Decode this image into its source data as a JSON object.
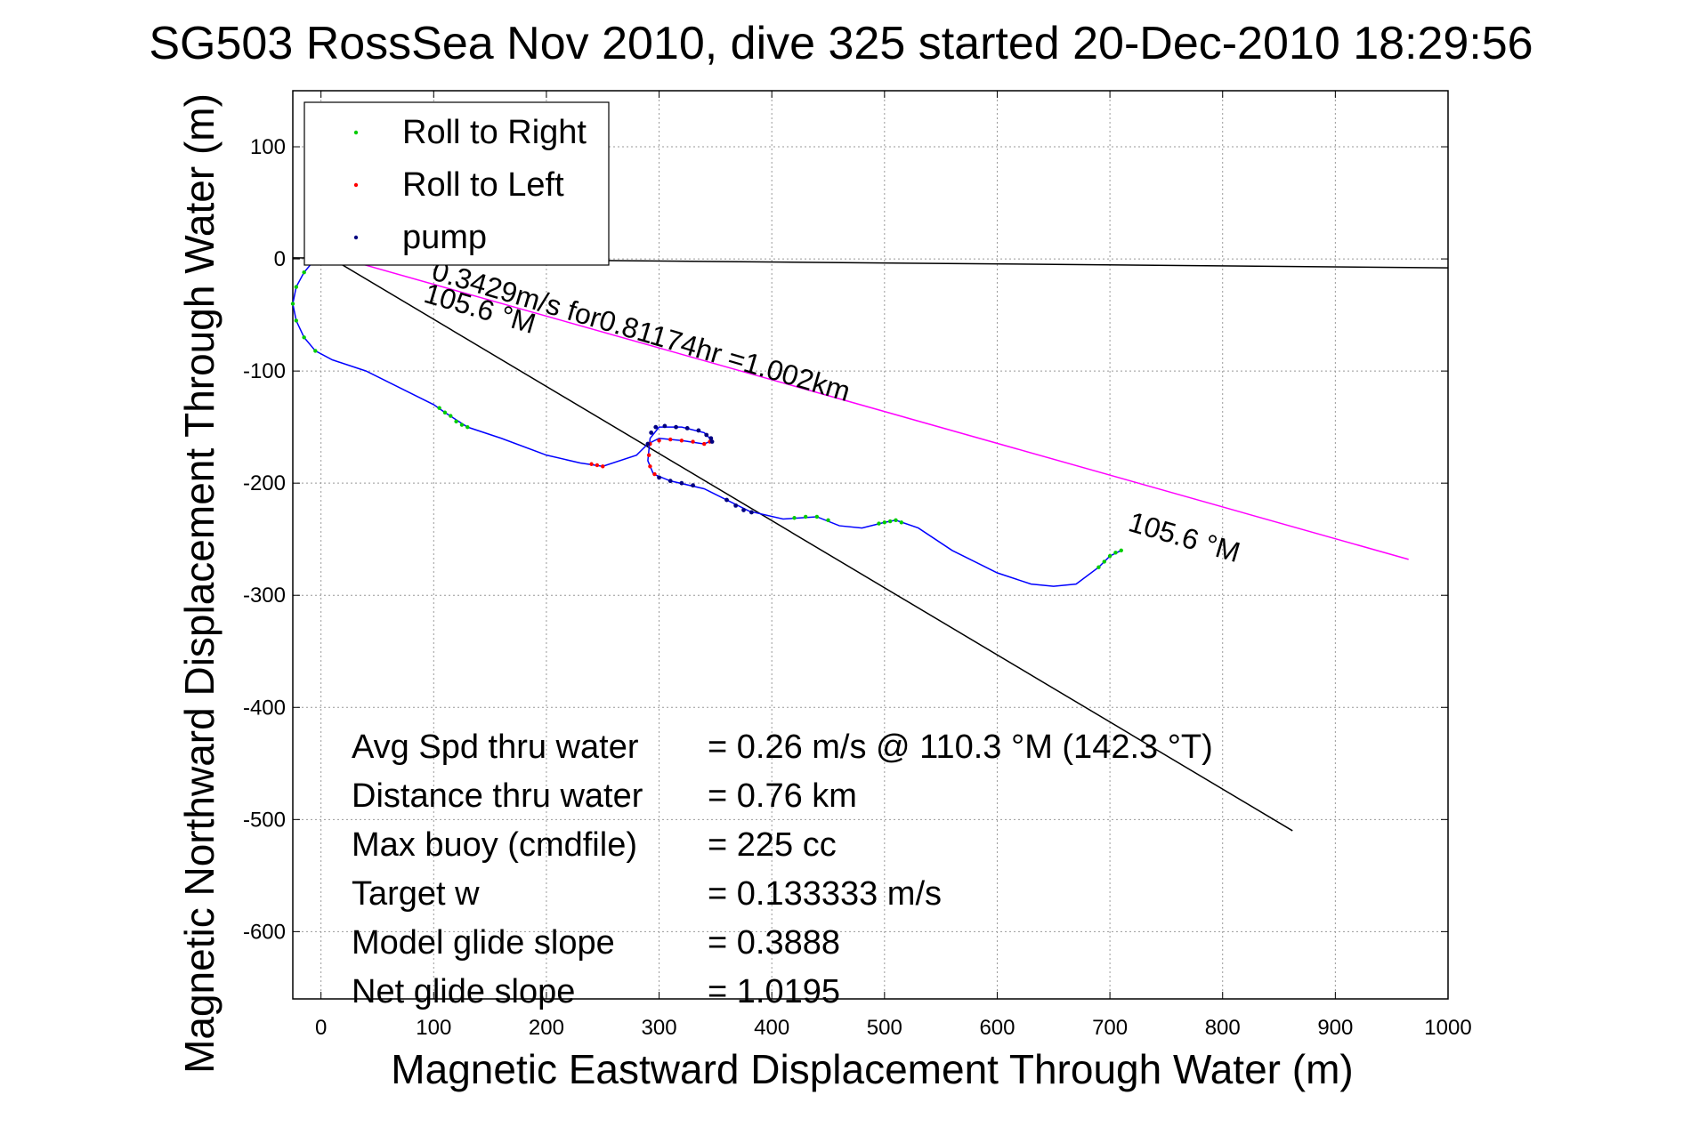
{
  "chart_data": {
    "type": "scatter",
    "title": "SG503 RossSea Nov 2010, dive 325 started 20-Dec-2010 18:29:56",
    "xlabel": "Magnetic Eastward Displacement Through Water (m)",
    "ylabel": "Magnetic Northward Displacement Through Water (m)",
    "xlim": [
      -25,
      1000
    ],
    "ylim": [
      -660,
      150
    ],
    "x_ticks": [
      0,
      100,
      200,
      300,
      400,
      500,
      600,
      700,
      800,
      900,
      1000
    ],
    "y_ticks": [
      100,
      0,
      -100,
      -200,
      -300,
      -400,
      -500,
      -600
    ],
    "grid": true,
    "legend_position": "top-left",
    "legend": [
      {
        "label": "Roll to Right",
        "color": "#00cc00"
      },
      {
        "label": "Roll to Left",
        "color": "#ff0000"
      },
      {
        "label": "pump",
        "color": "#000080"
      }
    ],
    "colors": {
      "track": "#0000ff",
      "roll_right": "#00cc00",
      "roll_left": "#ff0000",
      "pump": "#000080",
      "current_line": "#ff00ff",
      "heading_line": "#000000",
      "depth_avg_line": "#000000"
    },
    "track": [
      [
        -5,
        0
      ],
      [
        -15,
        -12
      ],
      [
        -22,
        -25
      ],
      [
        -25,
        -40
      ],
      [
        -22,
        -55
      ],
      [
        -15,
        -70
      ],
      [
        -5,
        -82
      ],
      [
        10,
        -90
      ],
      [
        40,
        -100
      ],
      [
        80,
        -120
      ],
      [
        100,
        -130
      ],
      [
        110,
        -137
      ],
      [
        130,
        -150
      ],
      [
        160,
        -160
      ],
      [
        200,
        -175
      ],
      [
        230,
        -182
      ],
      [
        250,
        -185
      ],
      [
        280,
        -175
      ],
      [
        290,
        -165
      ],
      [
        300,
        -160
      ],
      [
        320,
        -162
      ],
      [
        340,
        -165
      ],
      [
        347,
        -162
      ],
      [
        340,
        -155
      ],
      [
        320,
        -150
      ],
      [
        300,
        -150
      ],
      [
        292,
        -160
      ],
      [
        290,
        -180
      ],
      [
        295,
        -192
      ],
      [
        310,
        -198
      ],
      [
        340,
        -205
      ],
      [
        360,
        -215
      ],
      [
        380,
        -225
      ],
      [
        410,
        -232
      ],
      [
        440,
        -230
      ],
      [
        460,
        -238
      ],
      [
        480,
        -240
      ],
      [
        500,
        -235
      ],
      [
        510,
        -233
      ],
      [
        530,
        -240
      ],
      [
        560,
        -260
      ],
      [
        600,
        -280
      ],
      [
        630,
        -290
      ],
      [
        650,
        -292
      ],
      [
        670,
        -290
      ],
      [
        690,
        -275
      ],
      [
        700,
        -265
      ],
      [
        710,
        -260
      ]
    ],
    "roll_right": [
      [
        -5,
        0
      ],
      [
        -15,
        -12
      ],
      [
        -22,
        -25
      ],
      [
        -25,
        -40
      ],
      [
        -22,
        -55
      ],
      [
        -15,
        -70
      ],
      [
        -5,
        -82
      ],
      [
        105,
        -133
      ],
      [
        110,
        -137
      ],
      [
        115,
        -140
      ],
      [
        120,
        -145
      ],
      [
        125,
        -148
      ],
      [
        130,
        -150
      ],
      [
        420,
        -231
      ],
      [
        430,
        -230
      ],
      [
        440,
        -230
      ],
      [
        450,
        -233
      ],
      [
        495,
        -236
      ],
      [
        500,
        -235
      ],
      [
        505,
        -234
      ],
      [
        510,
        -233
      ],
      [
        515,
        -235
      ],
      [
        690,
        -275
      ],
      [
        695,
        -270
      ],
      [
        700,
        -265
      ],
      [
        705,
        -262
      ],
      [
        710,
        -260
      ]
    ],
    "roll_left": [
      [
        240,
        -183
      ],
      [
        245,
        -184
      ],
      [
        250,
        -185
      ],
      [
        300,
        -162
      ],
      [
        310,
        -161
      ],
      [
        320,
        -162
      ],
      [
        330,
        -163
      ],
      [
        340,
        -165
      ],
      [
        345,
        -163
      ],
      [
        292,
        -165
      ],
      [
        291,
        -175
      ],
      [
        292,
        -185
      ],
      [
        296,
        -192
      ]
    ],
    "pump": [
      [
        290,
        -165
      ],
      [
        293,
        -155
      ],
      [
        297,
        -150
      ],
      [
        305,
        -149
      ],
      [
        315,
        -150
      ],
      [
        325,
        -151
      ],
      [
        335,
        -153
      ],
      [
        342,
        -157
      ],
      [
        346,
        -160
      ],
      [
        347,
        -163
      ],
      [
        300,
        -195
      ],
      [
        310,
        -198
      ],
      [
        320,
        -200
      ],
      [
        330,
        -202
      ],
      [
        360,
        -215
      ],
      [
        368,
        -220
      ],
      [
        375,
        -224
      ],
      [
        382,
        -226
      ]
    ],
    "current_line": {
      "from": [
        20,
        0
      ],
      "to": [
        965,
        -268
      ]
    },
    "heading_line": {
      "from": [
        10,
        0
      ],
      "to": [
        862,
        -510
      ]
    },
    "depth_avg_line": {
      "from": [
        -25,
        1
      ],
      "to": [
        1000,
        -8
      ]
    },
    "annotations": [
      {
        "text": "0.3429m/s for0.81174hr =1.002km",
        "x": 97,
        "y": -18,
        "angle": 16.4
      },
      {
        "text": "105.6 °M",
        "x": 90,
        "y": -38,
        "angle": 16.4
      },
      {
        "text": "105.6 °M",
        "x": 715,
        "y": -242,
        "angle": 16.4
      }
    ],
    "stats": [
      {
        "label": "Avg Spd thru water",
        "value": "=  0.26 m/s @ 110.3 °M (142.3 °T)"
      },
      {
        "label": "Distance thru water",
        "value": "=  0.76 km"
      },
      {
        "label": "Max buoy (cmdfile)",
        "value": "= 225 cc"
      },
      {
        "label": "Target w",
        "value": "= 0.133333 m/s"
      },
      {
        "label": "Model glide slope",
        "value": "= 0.3888"
      },
      {
        "label": "Net glide slope",
        "value": "= 1.0195"
      }
    ]
  }
}
